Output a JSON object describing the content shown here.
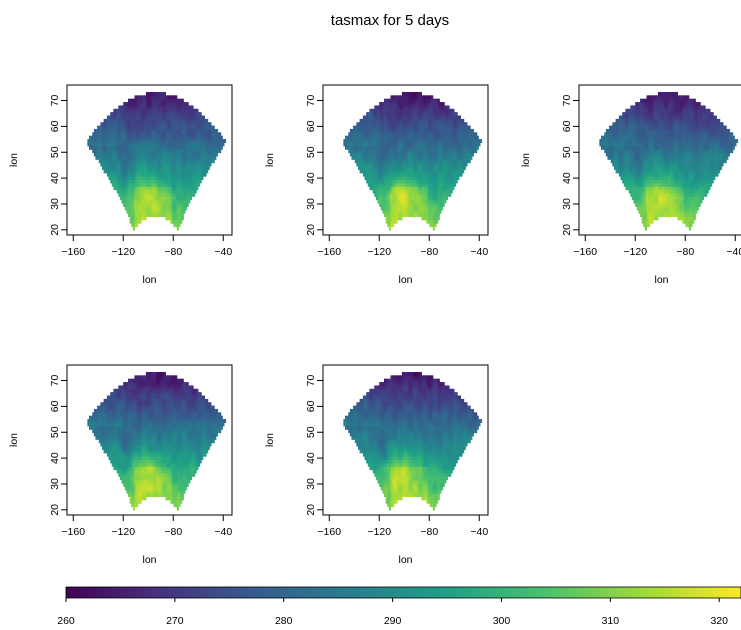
{
  "chart_data": {
    "type": "heatmap",
    "title": "tasmax for 5 days",
    "panel_count": 5,
    "panels": [
      {
        "xlabel": "lon",
        "ylabel": "lon"
      },
      {
        "xlabel": "lon",
        "ylabel": "lon"
      },
      {
        "xlabel": "lon",
        "ylabel": "lon"
      },
      {
        "xlabel": "lon",
        "ylabel": "lon"
      },
      {
        "xlabel": "lon",
        "ylabel": "lon"
      }
    ],
    "x_ticks": [
      -160,
      -120,
      -80,
      -40
    ],
    "y_ticks": [
      20,
      30,
      40,
      50,
      60,
      70
    ],
    "xlim": [
      -165,
      -33
    ],
    "ylim": [
      18,
      76
    ],
    "domain": {
      "lon_min": -150,
      "lon_max": -38,
      "lat_top": 73,
      "lat_edge": 54,
      "lat_bottom": 20
    },
    "colorbar": {
      "ticks": [
        260,
        270,
        280,
        290,
        300,
        310,
        320
      ],
      "range": [
        260,
        322
      ],
      "colormap": "viridis",
      "colors": [
        "#440154",
        "#46327e",
        "#365c8d",
        "#277f8e",
        "#1fa187",
        "#4ac16d",
        "#a0da39",
        "#fde725"
      ]
    }
  }
}
